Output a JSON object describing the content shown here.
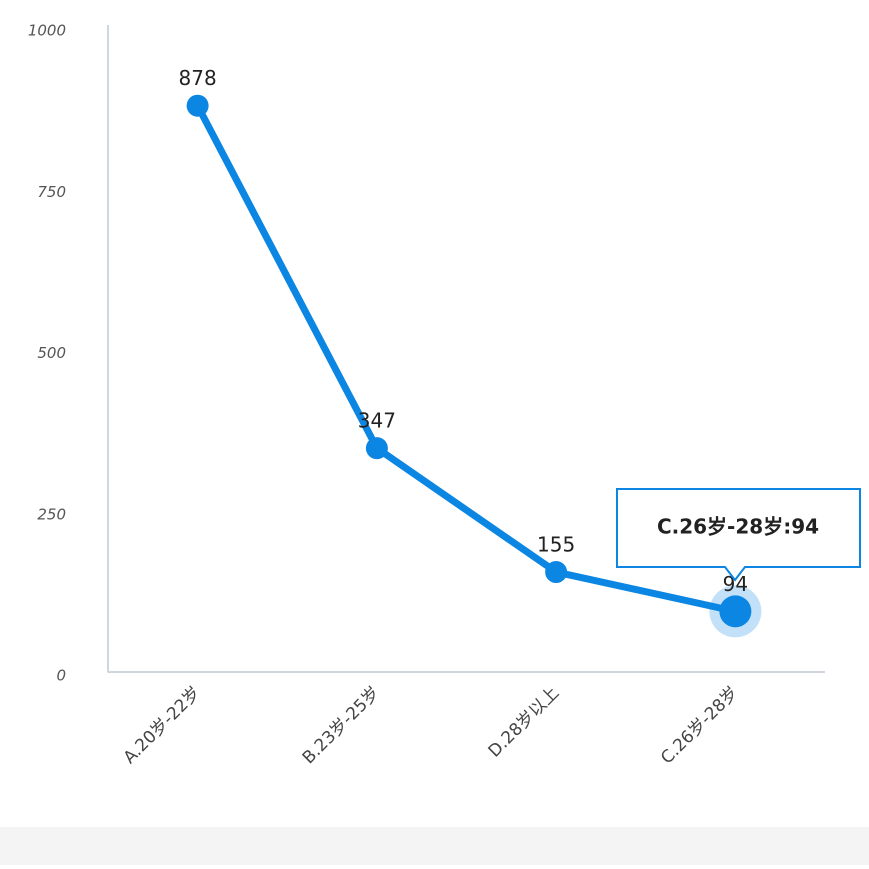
{
  "chart_data": {
    "type": "line",
    "categories": [
      "A.20岁-22岁",
      "B.23岁-25岁",
      "D.28岁以上",
      "C.26岁-28岁"
    ],
    "values": [
      878,
      347,
      155,
      94
    ],
    "color": "#0b86e3",
    "ylim": [
      0,
      1000
    ],
    "yticks": [
      0,
      250,
      500,
      750,
      1000
    ],
    "grid": false,
    "tooltip": "C.26岁-28岁:94"
  }
}
